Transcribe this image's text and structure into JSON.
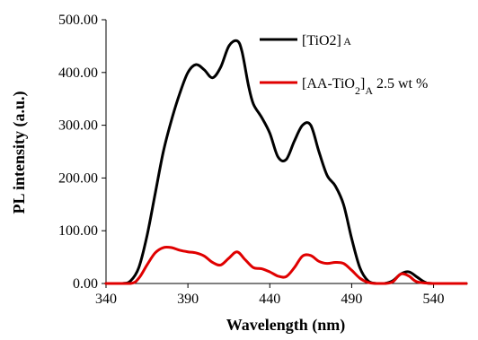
{
  "chart_data": {
    "type": "line",
    "title": "",
    "xlabel": "Wavelength (nm)",
    "ylabel": "PL intensity (a.u.)",
    "xlim": [
      340,
      560
    ],
    "ylim": [
      0,
      500
    ],
    "x_ticks": [
      340,
      390,
      440,
      490,
      540
    ],
    "x_tick_labels": [
      "340",
      "390",
      "440",
      "490",
      "540"
    ],
    "y_ticks": [
      0,
      100,
      200,
      300,
      400,
      500
    ],
    "y_tick_labels": [
      "0.00",
      "100.00",
      "200.00",
      "300.00",
      "400.00",
      "500.00"
    ],
    "grid": false,
    "legend_position": "top-right",
    "series": [
      {
        "name": "[TiO2]A",
        "legend_parts": [
          {
            "text": "[TiO",
            "shift": "none",
            "small": false
          },
          {
            "text": "2",
            "shift": "none",
            "small": false
          },
          {
            "text": "]",
            "shift": "none",
            "small": false
          },
          {
            "text": " A",
            "shift": "none",
            "small": true
          }
        ],
        "color": "#000000",
        "x": [
          340,
          350,
          355,
          360,
          365,
          370,
          375,
          380,
          385,
          390,
          395,
          400,
          405,
          410,
          415,
          420,
          423,
          427,
          430,
          435,
          440,
          445,
          450,
          455,
          460,
          465,
          470,
          475,
          480,
          485,
          490,
          495,
          500,
          505,
          510,
          515,
          520,
          525,
          530,
          535,
          540,
          560
        ],
        "y": [
          0,
          0,
          5,
          30,
          90,
          170,
          250,
          310,
          360,
          400,
          415,
          405,
          390,
          410,
          450,
          460,
          440,
          375,
          340,
          315,
          285,
          240,
          235,
          270,
          300,
          300,
          250,
          205,
          185,
          150,
          85,
          30,
          5,
          0,
          0,
          5,
          18,
          22,
          12,
          2,
          0,
          0
        ]
      },
      {
        "name": "[AA-TiO2]A 2.5 wt %",
        "legend_parts": [
          {
            "text": "[AA-TiO",
            "shift": "none",
            "small": false
          },
          {
            "text": "2",
            "shift": "sub",
            "small": true
          },
          {
            "text": "]",
            "shift": "none",
            "small": false
          },
          {
            "text": "A",
            "shift": "sub",
            "small": true
          },
          {
            "text": " 2.5 wt %",
            "shift": "none",
            "small": false
          }
        ],
        "color": "#e00000",
        "x": [
          340,
          355,
          360,
          365,
          370,
          375,
          380,
          385,
          390,
          395,
          400,
          405,
          410,
          415,
          420,
          425,
          430,
          435,
          440,
          445,
          450,
          455,
          460,
          465,
          470,
          475,
          480,
          485,
          490,
          495,
          500,
          505,
          510,
          515,
          520,
          525,
          530,
          540,
          560
        ],
        "y": [
          0,
          0,
          10,
          35,
          58,
          68,
          68,
          63,
          60,
          58,
          52,
          40,
          35,
          48,
          60,
          45,
          30,
          28,
          22,
          14,
          13,
          30,
          52,
          53,
          42,
          38,
          40,
          38,
          25,
          10,
          2,
          0,
          0,
          3,
          18,
          14,
          3,
          0,
          0
        ]
      }
    ]
  }
}
